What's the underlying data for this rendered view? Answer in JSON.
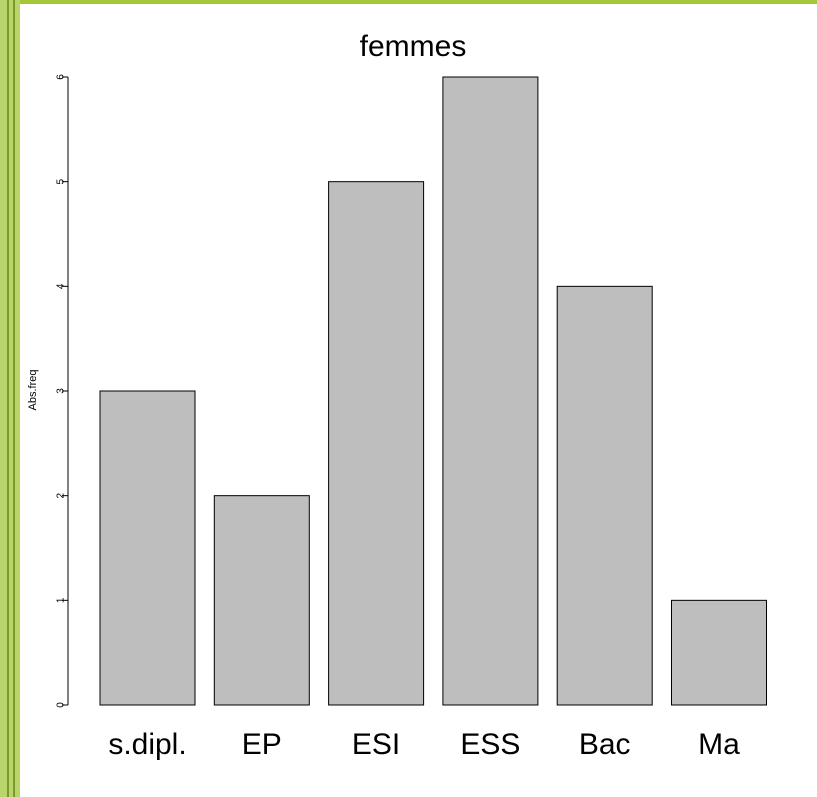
{
  "chart_data": {
    "type": "bar",
    "title": "femmes",
    "y_label": "Abs.freq",
    "categories": [
      "s.dipl.",
      "EP",
      "ESI",
      "ESS",
      "Bac",
      "Ma"
    ],
    "values": [
      3,
      2,
      5,
      6,
      4,
      1
    ],
    "color": "#bebebe",
    "ylim": [
      0,
      6
    ],
    "yticks": [
      0,
      1,
      2,
      3,
      4,
      5,
      6
    ],
    "grid": false
  }
}
